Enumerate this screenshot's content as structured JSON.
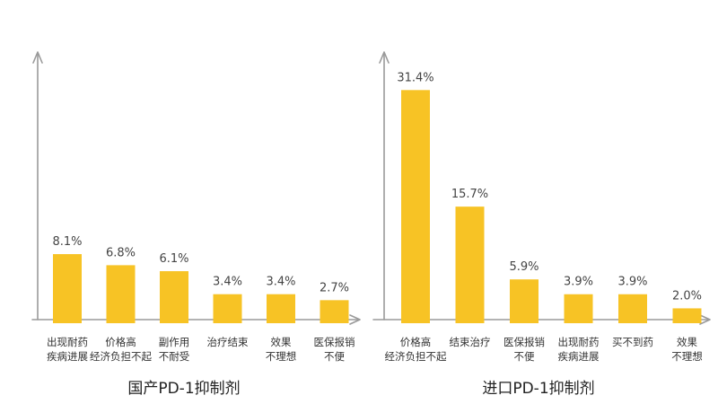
{
  "chart_data": [
    {
      "type": "bar",
      "title": "国产PD-1抑制剂",
      "categories": [
        [
          "出现耐药",
          "疾病进展"
        ],
        [
          "价格高",
          "经济负担不起"
        ],
        [
          "副作用",
          "不耐受"
        ],
        [
          "治疗结束"
        ],
        [
          "效果",
          "不理想"
        ],
        [
          "医保报销",
          "不便"
        ]
      ],
      "values": [
        8.1,
        6.8,
        6.1,
        3.4,
        3.4,
        2.7
      ],
      "value_labels": [
        "8.1%",
        "6.8%",
        "6.1%",
        "3.4%",
        "3.4%",
        "2.7%"
      ],
      "ylim": [
        0,
        36
      ],
      "bar_color": "#F7C325",
      "grid": false
    },
    {
      "type": "bar",
      "title": "进口PD-1抑制剂",
      "categories": [
        [
          "价格高",
          "经济负担不起"
        ],
        [
          "结束治疗"
        ],
        [
          "医保报销",
          "不便"
        ],
        [
          "出现耐药",
          "疾病进展"
        ],
        [
          "买不到药"
        ],
        [
          "效果",
          "不理想"
        ]
      ],
      "values": [
        31.4,
        15.7,
        5.9,
        3.9,
        3.9,
        2.0
      ],
      "value_labels": [
        "31.4%",
        "15.7%",
        "5.9%",
        "3.9%",
        "3.9%",
        "2.0%"
      ],
      "ylim": [
        0,
        36
      ],
      "bar_color": "#F7C325",
      "grid": false
    }
  ]
}
